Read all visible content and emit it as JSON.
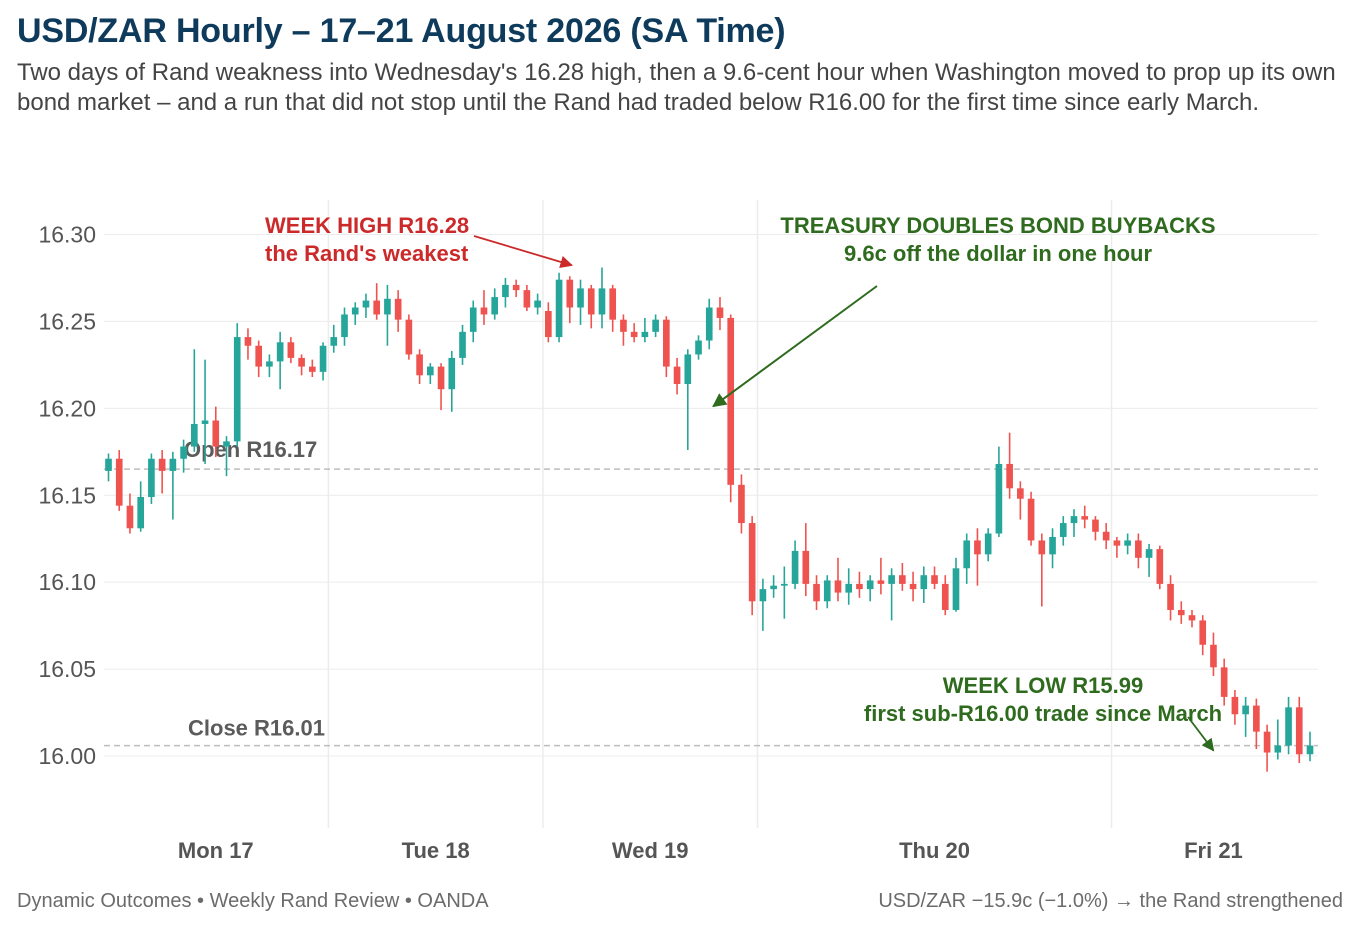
{
  "header": {
    "title": "USD/ZAR Hourly – 17–21 August 2026 (SA Time)",
    "subtitle": "Two days of Rand weakness into Wednesday's 16.28 high, then a 9.6-cent hour when Washington moved to prop up its own bond market – and a run that did not stop until the Rand had traded below R16.00 for the first time since early March."
  },
  "footer": {
    "source": "Dynamic Outcomes • Weekly Rand Review • OANDA",
    "summary": "USD/ZAR −15.9c (−1.0%) → the Rand strengthened"
  },
  "colors": {
    "up": "#26a69a",
    "down": "#ef5350",
    "high_annotation": "#cc2a2a",
    "low_annotation": "#2e6b1e",
    "title": "#0e3a5c",
    "reference_line": "#bdbdbd",
    "grid": "#ececec"
  },
  "chart_data": {
    "type": "candlestick",
    "ylim": [
      15.96,
      16.31
    ],
    "yticks": [
      16.0,
      16.05,
      16.1,
      16.15,
      16.2,
      16.25,
      16.3
    ],
    "grid": true,
    "days": [
      "Mon 17",
      "Tue 18",
      "Wed 19",
      "Thu 20",
      "Fri 21"
    ],
    "reference_lines": [
      {
        "label": "Open R16.17",
        "value": 16.165
      },
      {
        "label": "Close R16.01",
        "value": 16.006
      }
    ],
    "annotations": [
      {
        "id": "high",
        "lines": [
          "WEEK HIGH R16.28",
          "the Rand's weakest"
        ],
        "value": 16.28,
        "candle": 43
      },
      {
        "id": "bond",
        "lines": [
          "TREASURY DOUBLES BOND BUYBACKS",
          "9.6c off the dollar in one hour"
        ],
        "value": 16.2,
        "candle": 56
      },
      {
        "id": "low",
        "lines": [
          "WEEK LOW R15.99",
          "first sub-R16.00 trade since March"
        ],
        "value": 16.002,
        "candle": 103
      }
    ],
    "candles": [
      {
        "day": "Mon 17",
        "o": 16.164,
        "h": 16.174,
        "l": 16.158,
        "c": 16.171
      },
      {
        "day": "Mon 17",
        "o": 16.171,
        "h": 16.176,
        "l": 16.141,
        "c": 16.144
      },
      {
        "day": "Mon 17",
        "o": 16.144,
        "h": 16.151,
        "l": 16.128,
        "c": 16.131
      },
      {
        "day": "Mon 17",
        "o": 16.131,
        "h": 16.158,
        "l": 16.129,
        "c": 16.149
      },
      {
        "day": "Mon 17",
        "o": 16.149,
        "h": 16.174,
        "l": 16.145,
        "c": 16.171
      },
      {
        "day": "Mon 17",
        "o": 16.171,
        "h": 16.176,
        "l": 16.151,
        "c": 16.164
      },
      {
        "day": "Mon 17",
        "o": 16.164,
        "h": 16.175,
        "l": 16.136,
        "c": 16.171
      },
      {
        "day": "Mon 17",
        "o": 16.171,
        "h": 16.182,
        "l": 16.163,
        "c": 16.178
      },
      {
        "day": "Mon 17",
        "o": 16.178,
        "h": 16.234,
        "l": 16.175,
        "c": 16.191
      },
      {
        "day": "Mon 17",
        "o": 16.191,
        "h": 16.228,
        "l": 16.168,
        "c": 16.193
      },
      {
        "day": "Mon 17",
        "o": 16.193,
        "h": 16.201,
        "l": 16.172,
        "c": 16.178
      },
      {
        "day": "Mon 17",
        "o": 16.178,
        "h": 16.184,
        "l": 16.161,
        "c": 16.181
      },
      {
        "day": "Mon 17",
        "o": 16.181,
        "h": 16.249,
        "l": 16.178,
        "c": 16.241
      },
      {
        "day": "Mon 17",
        "o": 16.241,
        "h": 16.246,
        "l": 16.228,
        "c": 16.236
      },
      {
        "day": "Mon 17",
        "o": 16.236,
        "h": 16.239,
        "l": 16.218,
        "c": 16.224
      },
      {
        "day": "Mon 17",
        "o": 16.224,
        "h": 16.231,
        "l": 16.218,
        "c": 16.227
      },
      {
        "day": "Mon 17",
        "o": 16.227,
        "h": 16.244,
        "l": 16.211,
        "c": 16.238
      },
      {
        "day": "Mon 17",
        "o": 16.238,
        "h": 16.241,
        "l": 16.226,
        "c": 16.229
      },
      {
        "day": "Mon 17",
        "o": 16.229,
        "h": 16.231,
        "l": 16.219,
        "c": 16.224
      },
      {
        "day": "Mon 17",
        "o": 16.224,
        "h": 16.228,
        "l": 16.218,
        "c": 16.221
      },
      {
        "day": "Mon 17",
        "o": 16.221,
        "h": 16.238,
        "l": 16.216,
        "c": 16.236
      },
      {
        "day": "Tue 18",
        "o": 16.236,
        "h": 16.248,
        "l": 16.232,
        "c": 16.241
      },
      {
        "day": "Tue 18",
        "o": 16.241,
        "h": 16.258,
        "l": 16.236,
        "c": 16.254
      },
      {
        "day": "Tue 18",
        "o": 16.254,
        "h": 16.261,
        "l": 16.248,
        "c": 16.258
      },
      {
        "day": "Tue 18",
        "o": 16.258,
        "h": 16.266,
        "l": 16.252,
        "c": 16.262
      },
      {
        "day": "Tue 18",
        "o": 16.262,
        "h": 16.272,
        "l": 16.251,
        "c": 16.254
      },
      {
        "day": "Tue 18",
        "o": 16.254,
        "h": 16.271,
        "l": 16.236,
        "c": 16.263
      },
      {
        "day": "Tue 18",
        "o": 16.263,
        "h": 16.268,
        "l": 16.244,
        "c": 16.251
      },
      {
        "day": "Tue 18",
        "o": 16.251,
        "h": 16.254,
        "l": 16.228,
        "c": 16.231
      },
      {
        "day": "Tue 18",
        "o": 16.231,
        "h": 16.234,
        "l": 16.214,
        "c": 16.219
      },
      {
        "day": "Tue 18",
        "o": 16.219,
        "h": 16.226,
        "l": 16.214,
        "c": 16.224
      },
      {
        "day": "Tue 18",
        "o": 16.224,
        "h": 16.226,
        "l": 16.199,
        "c": 16.211
      },
      {
        "day": "Tue 18",
        "o": 16.211,
        "h": 16.233,
        "l": 16.198,
        "c": 16.229
      },
      {
        "day": "Tue 18",
        "o": 16.229,
        "h": 16.248,
        "l": 16.225,
        "c": 16.244
      },
      {
        "day": "Tue 18",
        "o": 16.244,
        "h": 16.262,
        "l": 16.238,
        "c": 16.258
      },
      {
        "day": "Tue 18",
        "o": 16.258,
        "h": 16.268,
        "l": 16.248,
        "c": 16.254
      },
      {
        "day": "Tue 18",
        "o": 16.254,
        "h": 16.269,
        "l": 16.251,
        "c": 16.264
      },
      {
        "day": "Tue 18",
        "o": 16.264,
        "h": 16.275,
        "l": 16.258,
        "c": 16.271
      },
      {
        "day": "Tue 18",
        "o": 16.271,
        "h": 16.274,
        "l": 16.264,
        "c": 16.268
      },
      {
        "day": "Tue 18",
        "o": 16.268,
        "h": 16.271,
        "l": 16.256,
        "c": 16.258
      },
      {
        "day": "Tue 18",
        "o": 16.258,
        "h": 16.266,
        "l": 16.254,
        "c": 16.262
      },
      {
        "day": "Wed 19",
        "o": 16.256,
        "h": 16.261,
        "l": 16.238,
        "c": 16.241
      },
      {
        "day": "Wed 19",
        "o": 16.241,
        "h": 16.278,
        "l": 16.238,
        "c": 16.274
      },
      {
        "day": "Wed 19",
        "o": 16.274,
        "h": 16.276,
        "l": 16.249,
        "c": 16.258
      },
      {
        "day": "Wed 19",
        "o": 16.258,
        "h": 16.274,
        "l": 16.248,
        "c": 16.269
      },
      {
        "day": "Wed 19",
        "o": 16.269,
        "h": 16.271,
        "l": 16.246,
        "c": 16.254
      },
      {
        "day": "Wed 19",
        "o": 16.254,
        "h": 16.281,
        "l": 16.246,
        "c": 16.269
      },
      {
        "day": "Wed 19",
        "o": 16.269,
        "h": 16.271,
        "l": 16.244,
        "c": 16.251
      },
      {
        "day": "Wed 19",
        "o": 16.251,
        "h": 16.254,
        "l": 16.236,
        "c": 16.244
      },
      {
        "day": "Wed 19",
        "o": 16.244,
        "h": 16.249,
        "l": 16.238,
        "c": 16.241
      },
      {
        "day": "Wed 19",
        "o": 16.241,
        "h": 16.252,
        "l": 16.238,
        "c": 16.244
      },
      {
        "day": "Wed 19",
        "o": 16.244,
        "h": 16.254,
        "l": 16.241,
        "c": 16.251
      },
      {
        "day": "Wed 19",
        "o": 16.251,
        "h": 16.253,
        "l": 16.218,
        "c": 16.224
      },
      {
        "day": "Wed 19",
        "o": 16.224,
        "h": 16.229,
        "l": 16.208,
        "c": 16.214
      },
      {
        "day": "Wed 19",
        "o": 16.214,
        "h": 16.234,
        "l": 16.176,
        "c": 16.231
      },
      {
        "day": "Wed 19",
        "o": 16.231,
        "h": 16.242,
        "l": 16.228,
        "c": 16.239
      },
      {
        "day": "Wed 19",
        "o": 16.239,
        "h": 16.263,
        "l": 16.234,
        "c": 16.258
      },
      {
        "day": "Wed 19",
        "o": 16.258,
        "h": 16.264,
        "l": 16.245,
        "c": 16.252
      },
      {
        "day": "Wed 19",
        "o": 16.252,
        "h": 16.254,
        "l": 16.146,
        "c": 16.156
      },
      {
        "day": "Wed 19",
        "o": 16.156,
        "h": 16.162,
        "l": 16.128,
        "c": 16.134
      },
      {
        "day": "Wed 19",
        "o": 16.134,
        "h": 16.138,
        "l": 16.081,
        "c": 16.089
      },
      {
        "day": "Thu 20",
        "o": 16.089,
        "h": 16.102,
        "l": 16.072,
        "c": 16.096
      },
      {
        "day": "Thu 20",
        "o": 16.096,
        "h": 16.104,
        "l": 16.091,
        "c": 16.098
      },
      {
        "day": "Thu 20",
        "o": 16.098,
        "h": 16.109,
        "l": 16.079,
        "c": 16.099
      },
      {
        "day": "Thu 20",
        "o": 16.099,
        "h": 16.124,
        "l": 16.096,
        "c": 16.118
      },
      {
        "day": "Thu 20",
        "o": 16.118,
        "h": 16.134,
        "l": 16.092,
        "c": 16.099
      },
      {
        "day": "Thu 20",
        "o": 16.099,
        "h": 16.104,
        "l": 16.084,
        "c": 16.089
      },
      {
        "day": "Thu 20",
        "o": 16.089,
        "h": 16.104,
        "l": 16.085,
        "c": 16.101
      },
      {
        "day": "Thu 20",
        "o": 16.101,
        "h": 16.114,
        "l": 16.089,
        "c": 16.094
      },
      {
        "day": "Thu 20",
        "o": 16.094,
        "h": 16.108,
        "l": 16.087,
        "c": 16.099
      },
      {
        "day": "Thu 20",
        "o": 16.099,
        "h": 16.106,
        "l": 16.091,
        "c": 16.096
      },
      {
        "day": "Thu 20",
        "o": 16.096,
        "h": 16.104,
        "l": 16.089,
        "c": 16.101
      },
      {
        "day": "Thu 20",
        "o": 16.101,
        "h": 16.114,
        "l": 16.093,
        "c": 16.099
      },
      {
        "day": "Thu 20",
        "o": 16.099,
        "h": 16.108,
        "l": 16.078,
        "c": 16.104
      },
      {
        "day": "Thu 20",
        "o": 16.104,
        "h": 16.111,
        "l": 16.095,
        "c": 16.099
      },
      {
        "day": "Thu 20",
        "o": 16.099,
        "h": 16.106,
        "l": 16.089,
        "c": 16.096
      },
      {
        "day": "Thu 20",
        "o": 16.096,
        "h": 16.109,
        "l": 16.088,
        "c": 16.104
      },
      {
        "day": "Thu 20",
        "o": 16.104,
        "h": 16.109,
        "l": 16.096,
        "c": 16.099
      },
      {
        "day": "Thu 20",
        "o": 16.099,
        "h": 16.104,
        "l": 16.081,
        "c": 16.084
      },
      {
        "day": "Thu 20",
        "o": 16.084,
        "h": 16.114,
        "l": 16.083,
        "c": 16.108
      },
      {
        "day": "Thu 20",
        "o": 16.108,
        "h": 16.128,
        "l": 16.099,
        "c": 16.124
      },
      {
        "day": "Thu 20",
        "o": 16.124,
        "h": 16.131,
        "l": 16.098,
        "c": 16.116
      },
      {
        "day": "Thu 20",
        "o": 16.116,
        "h": 16.131,
        "l": 16.112,
        "c": 16.128
      },
      {
        "day": "Thu 20",
        "o": 16.128,
        "h": 16.178,
        "l": 16.126,
        "c": 16.168
      },
      {
        "day": "Thu 20",
        "o": 16.168,
        "h": 16.186,
        "l": 16.148,
        "c": 16.154
      },
      {
        "day": "Thu 20",
        "o": 16.154,
        "h": 16.158,
        "l": 16.136,
        "c": 16.148
      },
      {
        "day": "Thu 20",
        "o": 16.148,
        "h": 16.152,
        "l": 16.121,
        "c": 16.124
      },
      {
        "day": "Thu 20",
        "o": 16.124,
        "h": 16.128,
        "l": 16.086,
        "c": 16.116
      },
      {
        "day": "Thu 20",
        "o": 16.116,
        "h": 16.131,
        "l": 16.108,
        "c": 16.126
      },
      {
        "day": "Thu 20",
        "o": 16.126,
        "h": 16.138,
        "l": 16.121,
        "c": 16.134
      },
      {
        "day": "Thu 20",
        "o": 16.134,
        "h": 16.142,
        "l": 16.126,
        "c": 16.138
      },
      {
        "day": "Thu 20",
        "o": 16.138,
        "h": 16.144,
        "l": 16.131,
        "c": 16.136
      },
      {
        "day": "Thu 20",
        "o": 16.136,
        "h": 16.138,
        "l": 16.124,
        "c": 16.129
      },
      {
        "day": "Thu 20",
        "o": 16.129,
        "h": 16.134,
        "l": 16.119,
        "c": 16.124
      },
      {
        "day": "Fri 21",
        "o": 16.124,
        "h": 16.126,
        "l": 16.114,
        "c": 16.121
      },
      {
        "day": "Fri 21",
        "o": 16.121,
        "h": 16.128,
        "l": 16.116,
        "c": 16.124
      },
      {
        "day": "Fri 21",
        "o": 16.124,
        "h": 16.128,
        "l": 16.108,
        "c": 16.114
      },
      {
        "day": "Fri 21",
        "o": 16.114,
        "h": 16.122,
        "l": 16.103,
        "c": 16.119
      },
      {
        "day": "Fri 21",
        "o": 16.119,
        "h": 16.121,
        "l": 16.096,
        "c": 16.099
      },
      {
        "day": "Fri 21",
        "o": 16.099,
        "h": 16.104,
        "l": 16.078,
        "c": 16.084
      },
      {
        "day": "Fri 21",
        "o": 16.084,
        "h": 16.089,
        "l": 16.076,
        "c": 16.081
      },
      {
        "day": "Fri 21",
        "o": 16.081,
        "h": 16.084,
        "l": 16.074,
        "c": 16.078
      },
      {
        "day": "Fri 21",
        "o": 16.078,
        "h": 16.081,
        "l": 16.058,
        "c": 16.064
      },
      {
        "day": "Fri 21",
        "o": 16.064,
        "h": 16.071,
        "l": 16.046,
        "c": 16.051
      },
      {
        "day": "Fri 21",
        "o": 16.051,
        "h": 16.056,
        "l": 16.029,
        "c": 16.034
      },
      {
        "day": "Fri 21",
        "o": 16.034,
        "h": 16.038,
        "l": 16.018,
        "c": 16.024
      },
      {
        "day": "Fri 21",
        "o": 16.024,
        "h": 16.034,
        "l": 16.011,
        "c": 16.029
      },
      {
        "day": "Fri 21",
        "o": 16.029,
        "h": 16.033,
        "l": 16.004,
        "c": 16.014
      },
      {
        "day": "Fri 21",
        "o": 16.014,
        "h": 16.018,
        "l": 15.991,
        "c": 16.002
      },
      {
        "day": "Fri 21",
        "o": 16.002,
        "h": 16.021,
        "l": 15.998,
        "c": 16.006
      },
      {
        "day": "Fri 21",
        "o": 16.006,
        "h": 16.034,
        "l": 16.001,
        "c": 16.028
      },
      {
        "day": "Fri 21",
        "o": 16.028,
        "h": 16.034,
        "l": 15.996,
        "c": 16.001
      },
      {
        "day": "Fri 21",
        "o": 16.001,
        "h": 16.014,
        "l": 15.997,
        "c": 16.006
      }
    ]
  }
}
